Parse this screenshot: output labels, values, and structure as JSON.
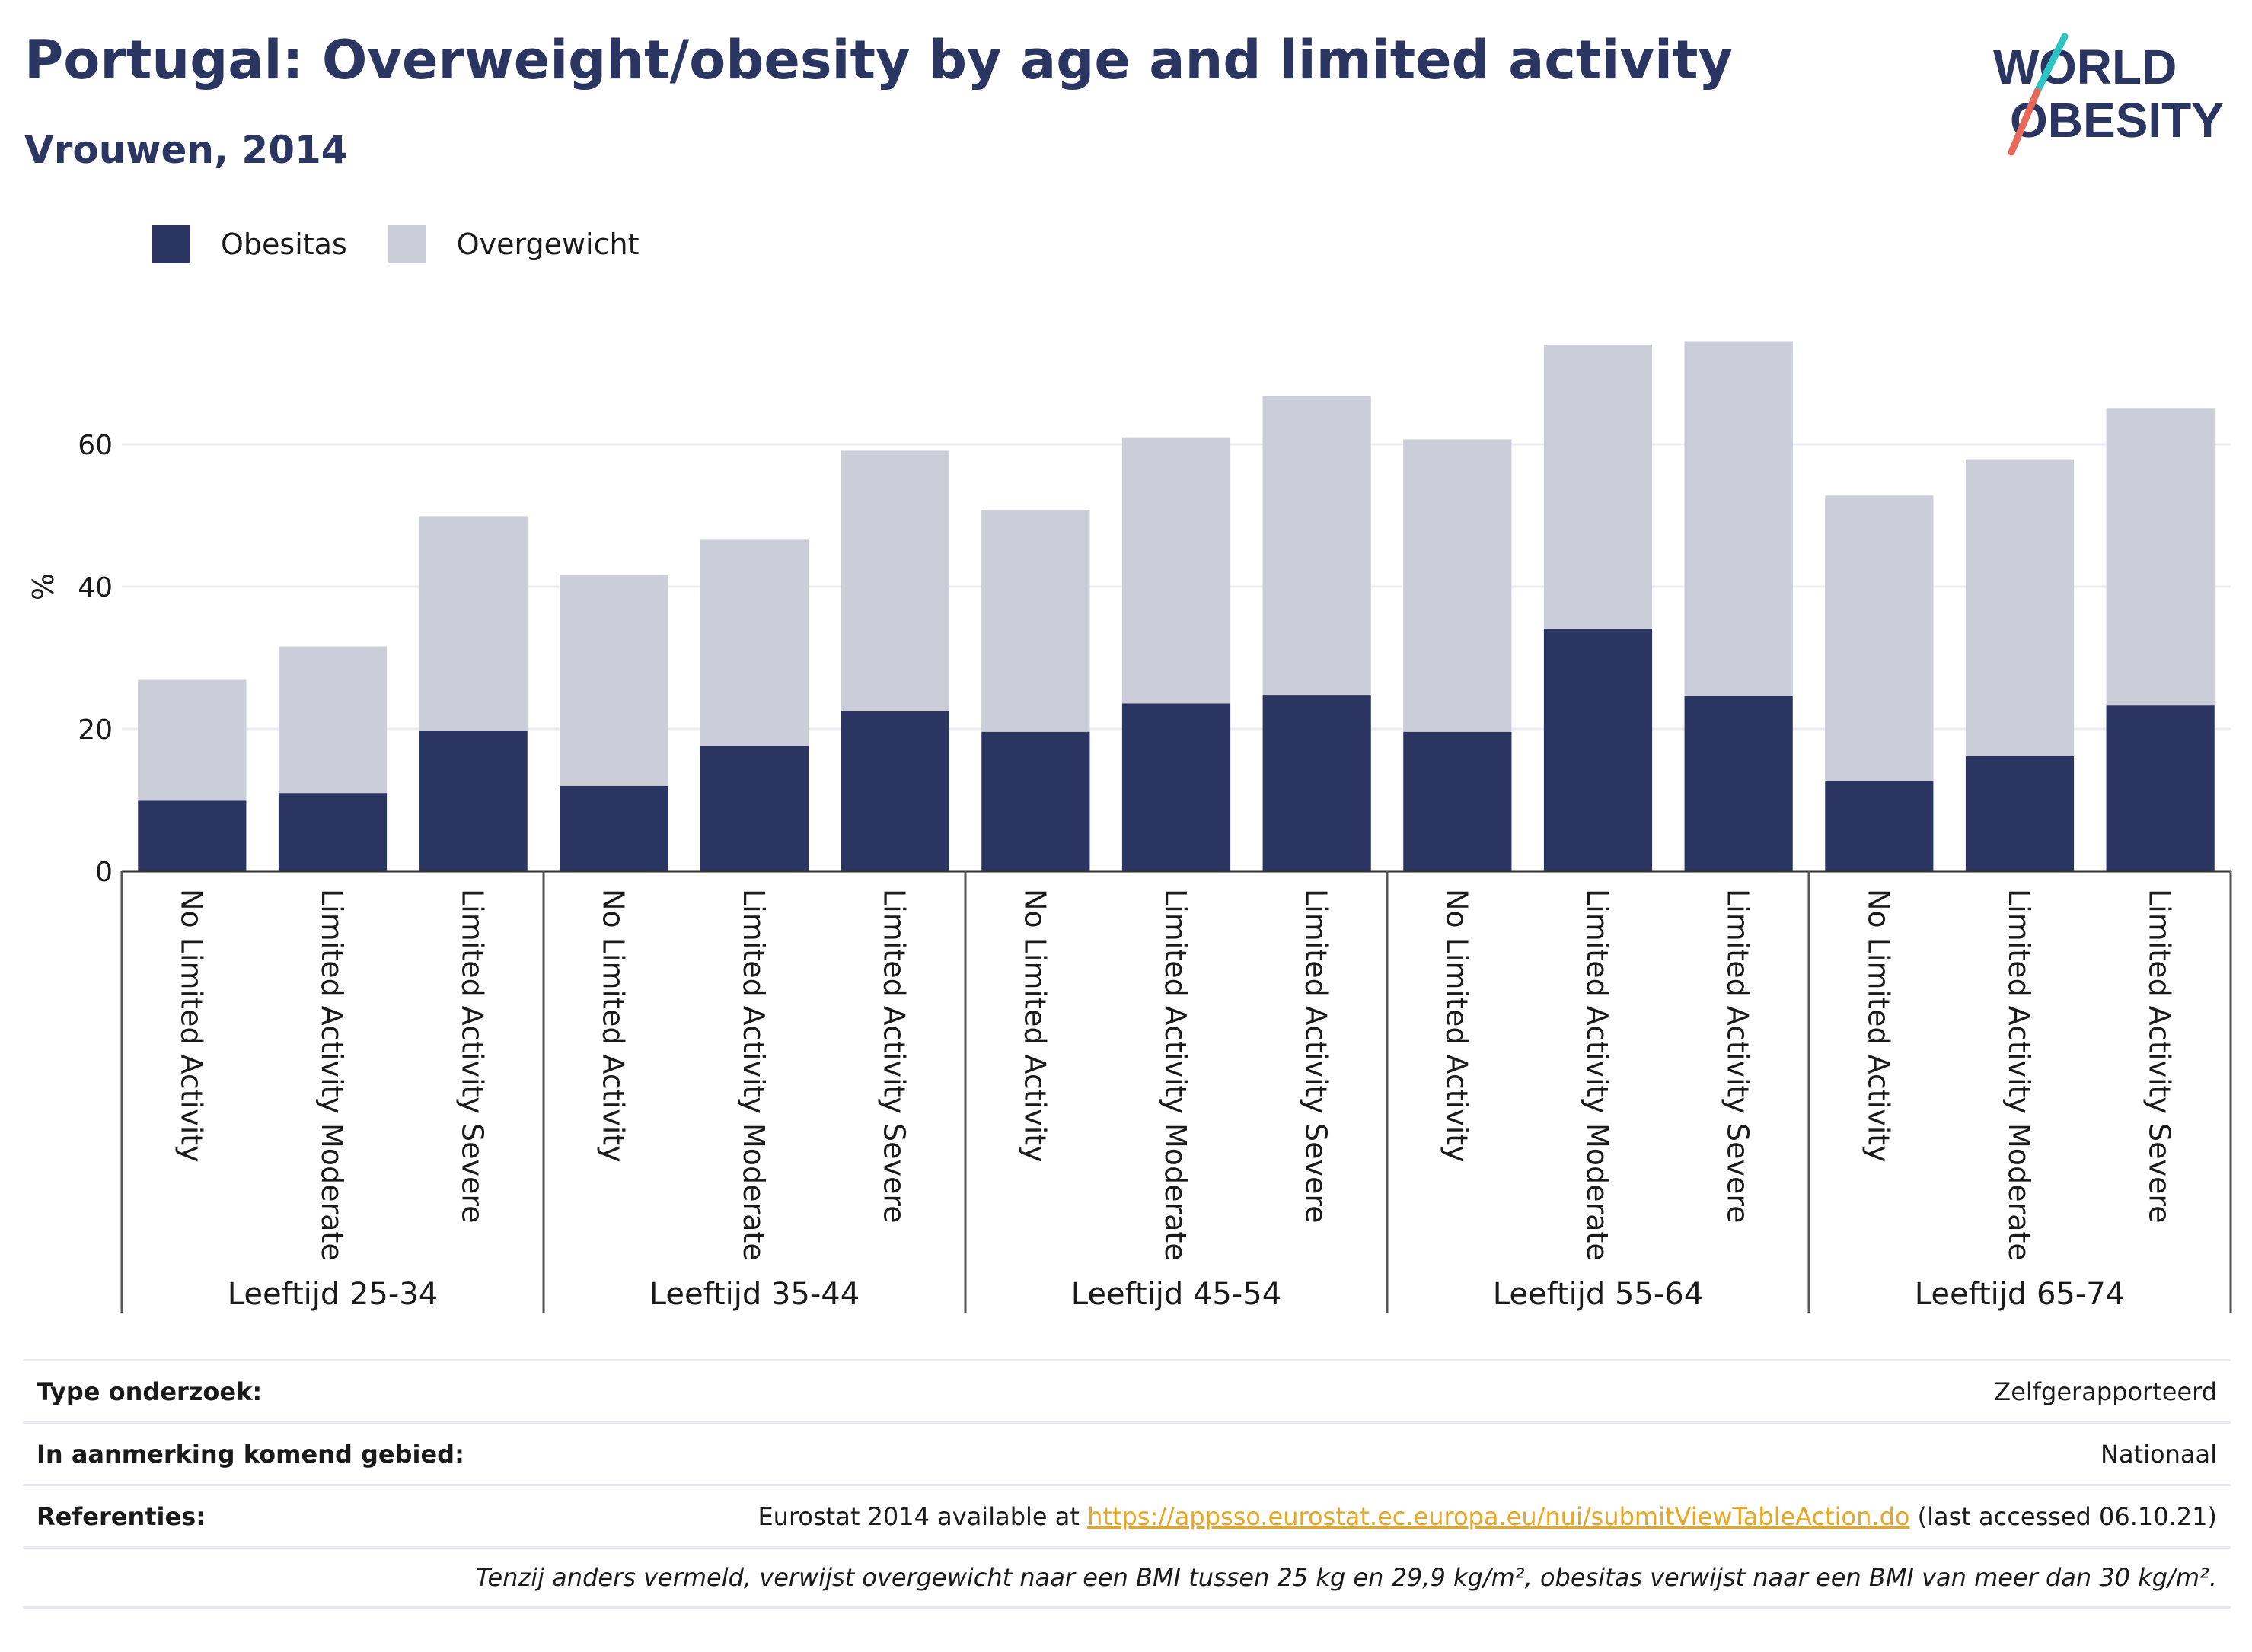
{
  "title": "Portugal: Overweight/obesity by age and limited activity",
  "subtitle": "Vrouwen, 2014",
  "logo": {
    "line1": "WORLD",
    "line2": "OBESITY"
  },
  "colors": {
    "obesitas": "#2a3562",
    "overgewicht": "#cbcdd9",
    "accent_teal": "#2ec4c6",
    "accent_red": "#e8685a",
    "link": "#e9a623"
  },
  "chart_data": {
    "type": "bar",
    "stacked": true,
    "ylabel": "%",
    "ylim": [
      0,
      75
    ],
    "yticks": [
      0,
      20,
      40,
      60
    ],
    "grid": true,
    "legend_position": "top-left",
    "groups": [
      "Leeftijd 25-34",
      "Leeftijd 35-44",
      "Leeftijd 45-54",
      "Leeftijd 55-64",
      "Leeftijd 65-74"
    ],
    "categories": [
      "No Limited Activity",
      "Limited Activity Moderate",
      "Limited Activity Severe"
    ],
    "series": [
      {
        "name": "Obesitas",
        "values": [
          [
            10.0,
            11.0,
            19.8
          ],
          [
            12.0,
            17.6,
            22.5
          ],
          [
            19.6,
            23.6,
            24.7
          ],
          [
            19.6,
            34.1,
            24.6
          ],
          [
            12.7,
            16.2,
            23.3
          ]
        ]
      },
      {
        "name": "Overgewicht",
        "values": [
          [
            17.0,
            20.6,
            30.1
          ],
          [
            29.6,
            29.1,
            36.6
          ],
          [
            31.2,
            37.4,
            42.1
          ],
          [
            41.1,
            39.9,
            49.9
          ],
          [
            40.1,
            41.7,
            41.8
          ]
        ]
      }
    ]
  },
  "info": {
    "type_label": "Type onderzoek:",
    "type_value": "Zelfgerapporteerd",
    "area_label": "In aanmerking komend gebied:",
    "area_value": "Nationaal",
    "ref_label": "Referenties:",
    "ref_prefix": "Eurostat 2014 available at ",
    "ref_link": "https://appsso.eurostat.ec.europa.eu/nui/submitViewTableAction.do",
    "ref_suffix": " (last accessed 06.10.21)",
    "note": "Tenzij anders vermeld, verwijst overgewicht naar een BMI tussen 25 kg en 29,9 kg/m², obesitas verwijst naar een BMI van meer dan 30 kg/m²."
  }
}
